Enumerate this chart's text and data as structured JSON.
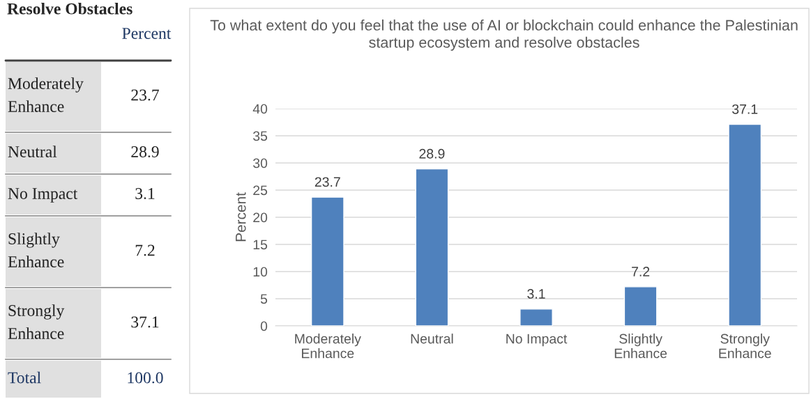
{
  "chart_data": [
    {
      "type": "other",
      "title": "Resolve Obstacles",
      "annotations": [
        "Percent"
      ],
      "categories": [
        "Moderately Enhance",
        "Neutral",
        "No Impact",
        "Slightly Enhance",
        "Strongly Enhance",
        "Total"
      ],
      "value_labels": [
        "23.7",
        "28.9",
        "3.1",
        "7.2",
        "37.1",
        "100.0"
      ]
    },
    {
      "type": "bar",
      "title": "To what extent do you feel that the use of AI or blockchain could enhance the Palestinian startup ecosystem and resolve obstacles",
      "ylabel": "Percent",
      "categories": [
        "Moderately Enhance",
        "Neutral",
        "No Impact",
        "Slightly Enhance",
        "Strongly Enhance"
      ],
      "values": [
        23.7,
        28.9,
        3.1,
        7.2,
        37.1
      ],
      "color": "#4f81bd",
      "ylim": [
        0,
        40
      ],
      "yticks": [
        0,
        5,
        10,
        15,
        20,
        25,
        30,
        35,
        40
      ],
      "grid": "y",
      "data_labels": true,
      "legend": false
    }
  ]
}
